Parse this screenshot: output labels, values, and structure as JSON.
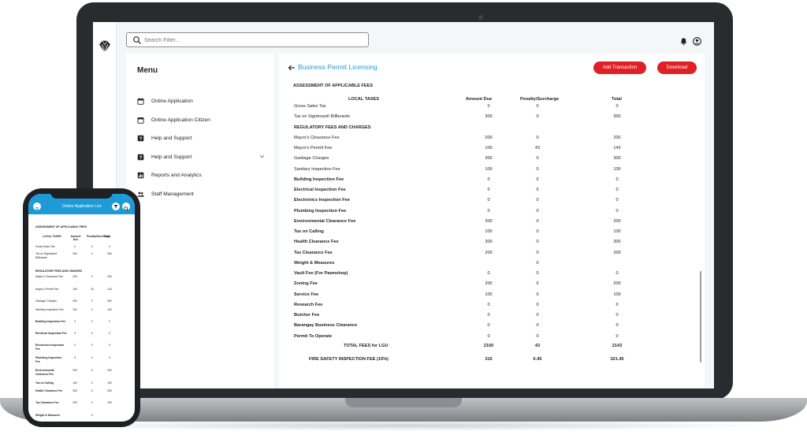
{
  "app": {
    "search": {
      "placeholder": "Search Filter..."
    }
  },
  "menu": {
    "title": "Menu",
    "items": [
      {
        "label": "Online Application",
        "icon": "calendar-icon"
      },
      {
        "label": "Online Application Citizen",
        "icon": "calendar-icon"
      },
      {
        "label": "Help and Support",
        "icon": "help-icon"
      },
      {
        "label": "Help and Support",
        "icon": "help-icon",
        "expandable": true
      },
      {
        "label": "Reports and Analytics",
        "icon": "chart-icon"
      },
      {
        "label": "Staff Management",
        "icon": "people-icon"
      }
    ]
  },
  "page": {
    "title": "Business Permit Licensing",
    "add_transaction_label": "Add Transaction",
    "download_label": "Download",
    "section_title": "ASSESSMENT OF APPLICABLE FEES",
    "columns": [
      "LOCAL TAXES",
      "Amount Due",
      "Penalty/Surcharge",
      "Total"
    ],
    "local_taxes": [
      {
        "name": "Gross Sales Tax",
        "amount": "0",
        "penalty": "0",
        "total": "0"
      },
      {
        "name": "Tax on Signboard/ Billboards",
        "amount": "300",
        "penalty": "0",
        "total": "300"
      }
    ],
    "regulatory_title": "REGULATORY FEES AND CHARGES",
    "regulatory": [
      {
        "name": "Mayor's Clearance Fee",
        "amount": "200",
        "penalty": "0",
        "total": "200",
        "bold": false
      },
      {
        "name": "Mayor's Permit Fee",
        "amount": "100",
        "penalty": "43",
        "total": "143",
        "bold": false
      },
      {
        "name": "Garbage Charges",
        "amount": "300",
        "penalty": "0",
        "total": "300",
        "bold": false
      },
      {
        "name": "Sanitary Inspection Fee",
        "amount": "100",
        "penalty": "0",
        "total": "100",
        "bold": false
      },
      {
        "name": "Building Inspection Fee",
        "amount": "0",
        "penalty": "0",
        "total": "0",
        "bold": true
      },
      {
        "name": "Electrical Inspection Fee",
        "amount": "0",
        "penalty": "0",
        "total": "0",
        "bold": true
      },
      {
        "name": "Electronics Inspection Fee",
        "amount": "0",
        "penalty": "0",
        "total": "0",
        "bold": true
      },
      {
        "name": "Plumbing Inspection Fee",
        "amount": "0",
        "penalty": "0",
        "total": "0",
        "bold": true
      },
      {
        "name": "Environmental Clearance Fee",
        "amount": "200",
        "penalty": "0",
        "total": "200",
        "bold": true
      },
      {
        "name": "Tax on Calling",
        "amount": "100",
        "penalty": "0",
        "total": "100",
        "bold": true
      },
      {
        "name": "Health Clearance Fee",
        "amount": "300",
        "penalty": "0",
        "total": "300",
        "bold": true
      },
      {
        "name": "Tax Clearance Fee",
        "amount": "200",
        "penalty": "0",
        "total": "200",
        "bold": true
      },
      {
        "name": "Weight & Measures",
        "amount": "",
        "penalty": "0",
        "total": "",
        "bold": true
      },
      {
        "name": "Vault Fee (For Pawnshop)",
        "amount": "0",
        "penalty": "0",
        "total": "0",
        "bold": true
      },
      {
        "name": "Zoning Fee",
        "amount": "200",
        "penalty": "0",
        "total": "200",
        "bold": true
      },
      {
        "name": "Service Fee",
        "amount": "100",
        "penalty": "0",
        "total": "100",
        "bold": true
      },
      {
        "name": "Research Fee",
        "amount": "0",
        "penalty": "0",
        "total": "0",
        "bold": true
      },
      {
        "name": "Butcher Fee",
        "amount": "0",
        "penalty": "0",
        "total": "0",
        "bold": true
      },
      {
        "name": "Barangay Business Clearance",
        "amount": "0",
        "penalty": "0",
        "total": "0",
        "bold": true
      },
      {
        "name": "Permit To Operate",
        "amount": "0",
        "penalty": "0",
        "total": "0",
        "bold": true
      }
    ],
    "total_lgu": {
      "name": "TOTAL FEES for LGU",
      "amount": "2100",
      "penalty": "43",
      "total": "2143"
    },
    "fire_safety": {
      "name": "FIRE SAFETY INSPECTION FEE (15%)",
      "amount": "315",
      "penalty": "6.45",
      "total": "321.45"
    }
  },
  "phone": {
    "title": "Online Application List",
    "section_title": "ASSESSMENT OF APPLICABLE FEES",
    "columns": [
      "LOCAL TAXES",
      "Amount Due",
      "Penalty/Surcharge",
      "Total"
    ],
    "rows_local": [
      {
        "name": "Gross Sales Tax",
        "amount": "0",
        "penalty": "0",
        "total": "0"
      },
      {
        "name": "Tax on Signboard/ Billboards",
        "amount": "300",
        "penalty": "0",
        "total": "300"
      }
    ],
    "regulatory_title": "REGULATORY FEES AND CHARGES",
    "rows_reg": [
      {
        "name": "Mayor's Clearance Fee",
        "amount": "200",
        "penalty": "0",
        "total": "200",
        "bold": false
      },
      {
        "name": "Mayor's Permit Fee",
        "amount": "100",
        "penalty": "43",
        "total": "143",
        "bold": false
      },
      {
        "name": "Garbage Charges",
        "amount": "300",
        "penalty": "0",
        "total": "300",
        "bold": false
      },
      {
        "name": "Sanitary Inspection Fee",
        "amount": "100",
        "penalty": "0",
        "total": "100",
        "bold": false
      },
      {
        "name": "Building Inspection Fee",
        "amount": "0",
        "penalty": "0",
        "total": "0",
        "bold": true
      },
      {
        "name": "Electrical Inspection Fee",
        "amount": "0",
        "penalty": "0",
        "total": "0",
        "bold": true
      },
      {
        "name": "Electronics Inspection Fee",
        "amount": "0",
        "penalty": "0",
        "total": "0",
        "bold": true
      },
      {
        "name": "Plumbing Inspection Fee",
        "amount": "0",
        "penalty": "0",
        "total": "0",
        "bold": true
      },
      {
        "name": "Environmental Clearance Fee",
        "amount": "200",
        "penalty": "0",
        "total": "200",
        "bold": true
      },
      {
        "name": "Tax on Calling",
        "amount": "100",
        "penalty": "0",
        "total": "100",
        "bold": true
      },
      {
        "name": "Health Clearance Fee",
        "amount": "300",
        "penalty": "0",
        "total": "300",
        "bold": true
      },
      {
        "name": "Tax Clearance Fee",
        "amount": "200",
        "penalty": "0",
        "total": "200",
        "bold": true
      },
      {
        "name": "Weight & Measures",
        "amount": "",
        "penalty": "0",
        "total": "",
        "bold": true
      }
    ]
  }
}
